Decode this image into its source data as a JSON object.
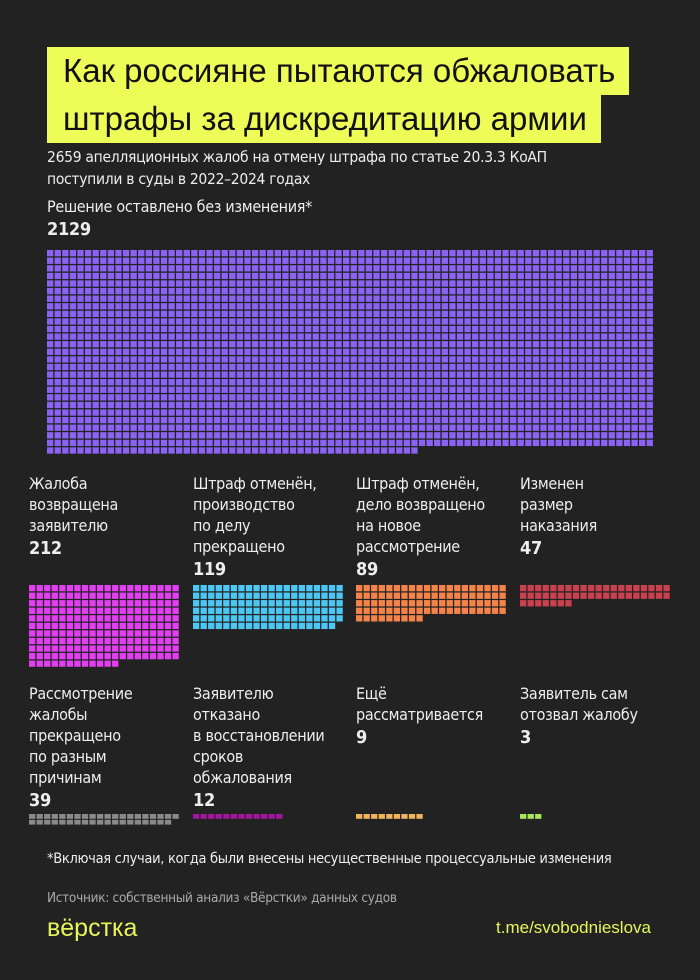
{
  "title": {
    "line1": "Как россияне пытаются обжаловать",
    "line2": "штрафы за дискредитацию армии"
  },
  "subtitle": {
    "line1": "2659 апелляционных жалоб на отмену штрафа по статье 20.3.3 КоАП",
    "line2": "поступили в суды в 2022–2024 годах"
  },
  "chart_data": {
    "type": "waffle",
    "total": 2659,
    "series": [
      {
        "name": "Решение оставлено без изменения*",
        "value": 2129,
        "label": "2129",
        "color": "#8b63f2",
        "columns": 80
      },
      {
        "name": "Жалоба возвращена заявителю",
        "value": 212,
        "label": "212",
        "color": "#e23ff0",
        "columns": 20
      },
      {
        "name": "Штраф отменён, производство по делу прекращено",
        "value": 119,
        "label": "119",
        "color": "#4cc6f2",
        "columns": 20
      },
      {
        "name": "Штраф отменён, дело возвращено на новое рассмотрение",
        "value": 89,
        "label": "89",
        "color": "#f5844a",
        "columns": 20
      },
      {
        "name": "Изменен размер наказания",
        "value": 47,
        "label": "47",
        "color": "#c9404f",
        "columns": 20
      },
      {
        "name": "Рассмотрение жалобы прекращено по разным причинам",
        "value": 39,
        "label": "39",
        "color": "#8a8a8a",
        "columns": 20
      },
      {
        "name": "Заявителю отказано в восстановлении сроков обжалования",
        "value": 12,
        "label": "12",
        "color": "#a3159f",
        "columns": 20
      },
      {
        "name": "Ещё рассматривается",
        "value": 9,
        "label": "9",
        "color": "#f2b45a",
        "columns": 20
      },
      {
        "name": "Заявитель сам отозвал жалобу",
        "value": 3,
        "label": "3",
        "color": "#a6e85a",
        "columns": 20
      }
    ],
    "labels_lines": [
      [
        "Решение оставлено без изменения*"
      ],
      [
        "Жалоба",
        "возвращена",
        "заявителю"
      ],
      [
        "Штраф отменён,",
        "производство",
        "по делу",
        "прекращено"
      ],
      [
        "Штраф отменён,",
        "дело возвращено",
        "на новое",
        "рассмотрение"
      ],
      [
        "Изменен",
        "размер",
        "наказания"
      ],
      [
        "Рассмотрение",
        "жалобы",
        "прекращено",
        "по разным",
        "причинам"
      ],
      [
        "Заявителю",
        "отказано",
        "в восстановлении",
        "сроков",
        "обжалования"
      ],
      [
        "Ещё",
        "рассматривается"
      ],
      [
        "Заявитель сам",
        "отозвал жалобу"
      ]
    ]
  },
  "footnote": "*Включая случаи, когда были внесены несущественные процессуальные изменения",
  "source": "Источник: собственный анализ «Вёрстки» данных судов",
  "logo_text": "вёрстка",
  "link": "t.me/svobodnieslova",
  "colors": {
    "background": "#222222",
    "title_bg": "#eefc57",
    "brand": "#e6f55a"
  }
}
